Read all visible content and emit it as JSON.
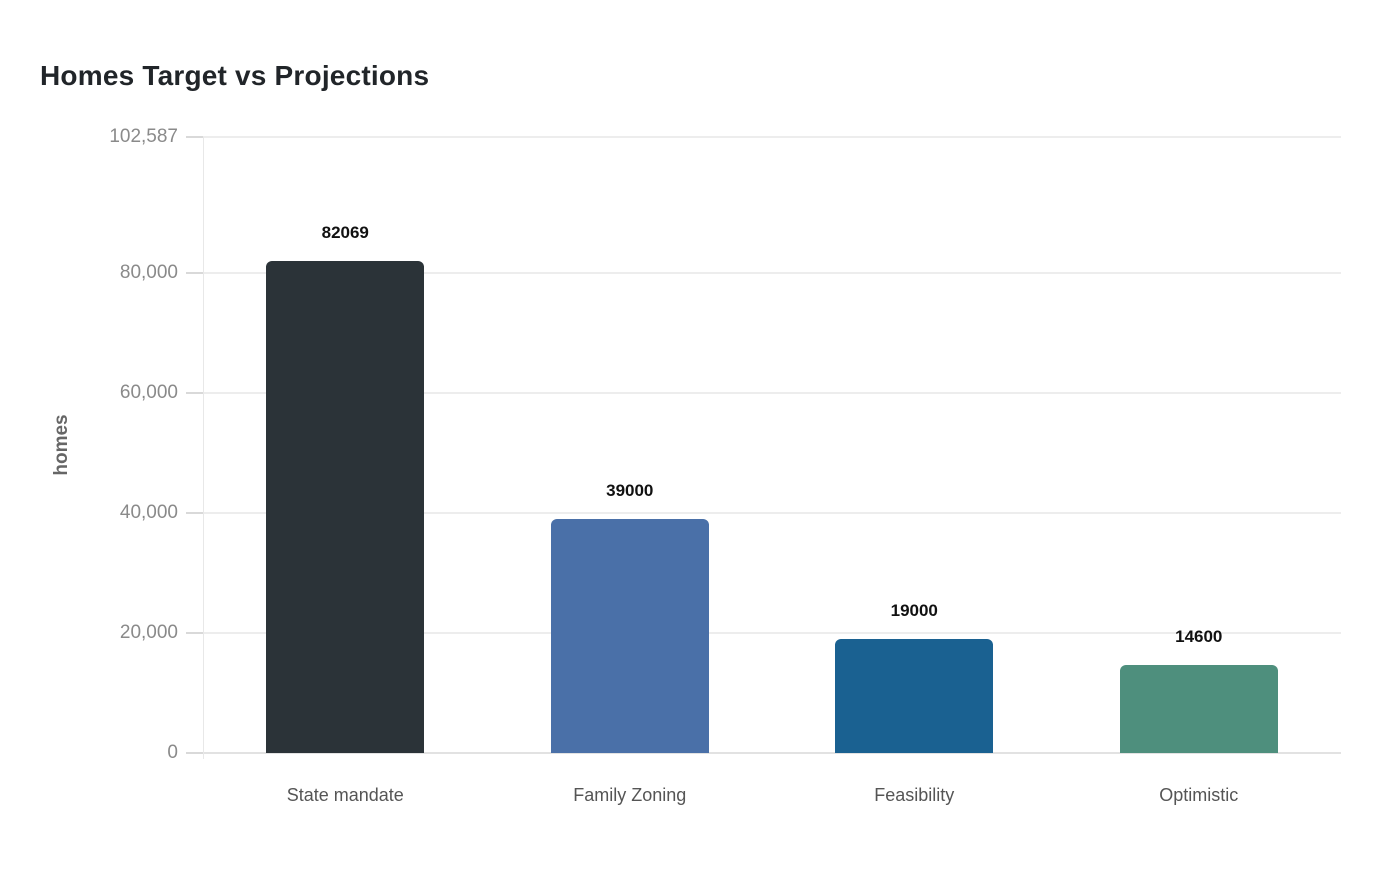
{
  "chart_data": {
    "type": "bar",
    "title": "Homes Target vs Projections",
    "ylabel": "homes",
    "xlabel": "",
    "categories": [
      "State mandate",
      "Family Zoning",
      "Feasibility",
      "Optimistic"
    ],
    "values": [
      82069,
      39000,
      19000,
      14600
    ],
    "bar_labels": [
      "82069",
      "39000",
      "19000",
      "14600"
    ],
    "bar_colors": [
      "#2b3338",
      "#4a70a8",
      "#1a6191",
      "#4e8f7d"
    ],
    "ylim": [
      0,
      102587
    ],
    "yticks": [
      {
        "value": 0,
        "label": "0"
      },
      {
        "value": 20000,
        "label": "20,000"
      },
      {
        "value": 40000,
        "label": "40,000"
      },
      {
        "value": 60000,
        "label": "60,000"
      },
      {
        "value": 80000,
        "label": "80,000"
      },
      {
        "value": 102587,
        "label": "102,587"
      }
    ],
    "grid": true,
    "legend": false,
    "colors": {
      "background": "#ffffff",
      "title": "#212529",
      "y_tick_label": "#8a8a8a",
      "y_axis_title": "#666666",
      "x_tick_label": "#555555",
      "value_label": "#111111",
      "gridline": "#ededed",
      "baseline": "#e2e2e2",
      "axis_line": "#e8e8e8",
      "tick_mark": "#d9d9d9"
    }
  }
}
